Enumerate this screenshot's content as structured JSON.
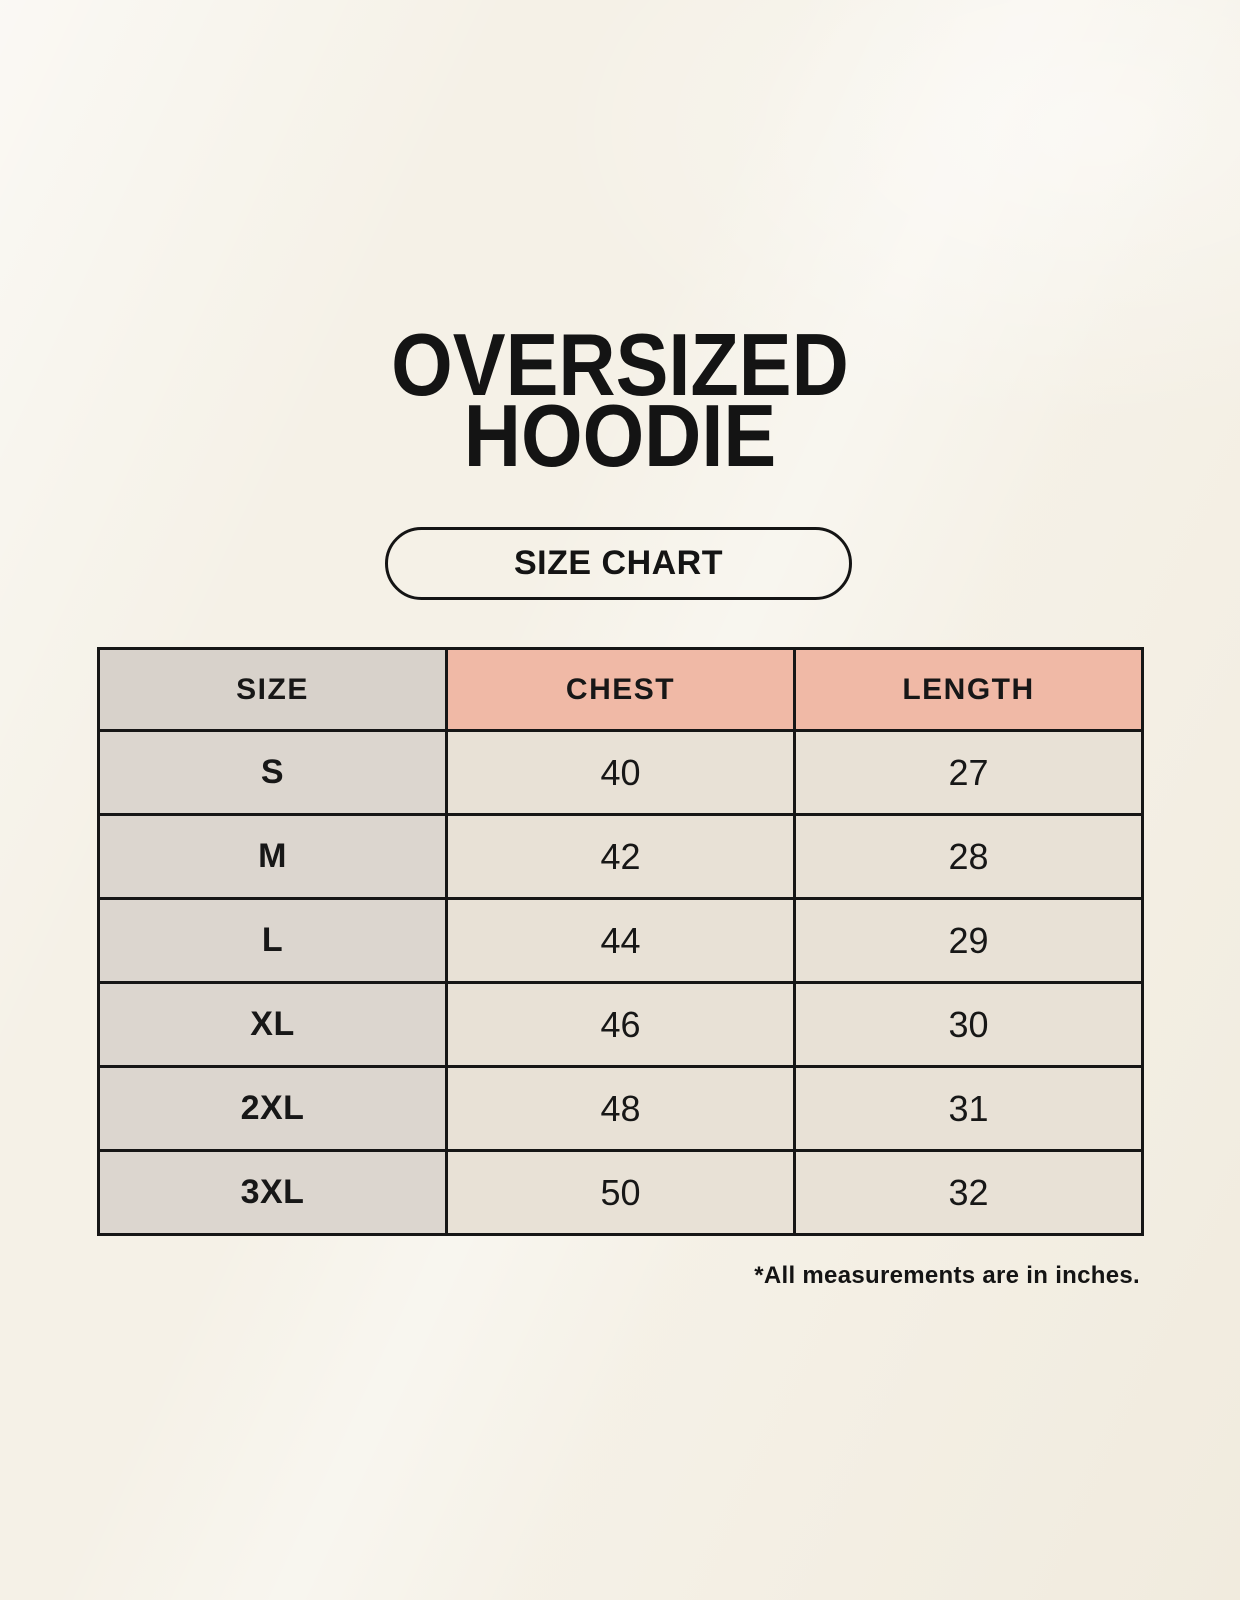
{
  "page": {
    "title_line1": "OVERSIZED",
    "title_line2": "HOODIE",
    "badge_label": "SIZE CHART",
    "footnote": "*All measurements are in inches."
  },
  "table": {
    "headers": {
      "size": "SIZE",
      "chest": "CHEST",
      "length": "LENGTH"
    },
    "rows": [
      {
        "size": "S",
        "chest": "40",
        "length": "27"
      },
      {
        "size": "M",
        "chest": "42",
        "length": "28"
      },
      {
        "size": "L",
        "chest": "44",
        "length": "29"
      },
      {
        "size": "XL",
        "chest": "46",
        "length": "30"
      },
      {
        "size": "2XL",
        "chest": "48",
        "length": "31"
      },
      {
        "size": "3XL",
        "chest": "50",
        "length": "32"
      }
    ],
    "units": "inches"
  },
  "colors": {
    "page_background": "#f5f1e7",
    "size_header_bg": "#d8d2cb",
    "measurement_header_bg": "#f0b9a6",
    "size_column_bg": "#dcd6cf",
    "data_cell_bg": "#e8e1d6",
    "border": "#161616",
    "text": "#141414"
  }
}
